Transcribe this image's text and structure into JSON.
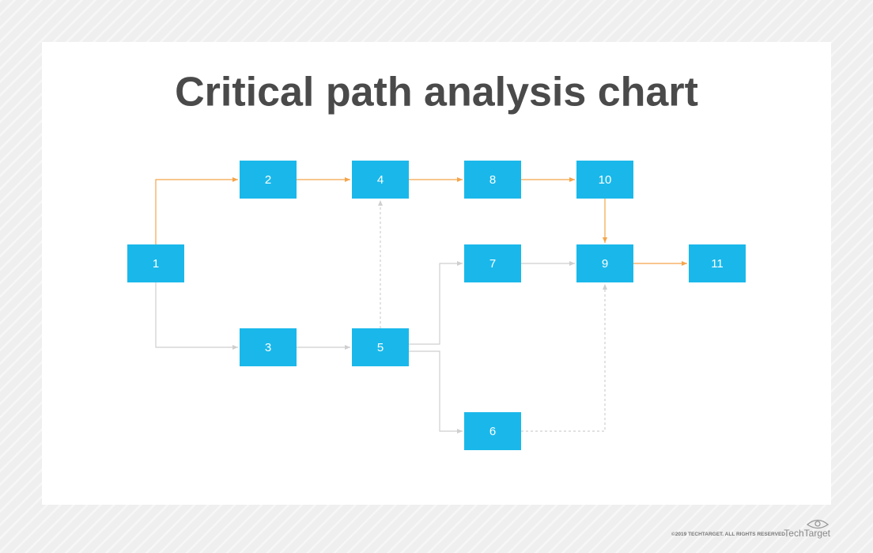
{
  "title": "Critical path analysis chart",
  "nodes": [
    {
      "label": "1"
    },
    {
      "label": "2"
    },
    {
      "label": "3"
    },
    {
      "label": "4"
    },
    {
      "label": "5"
    },
    {
      "label": "6"
    },
    {
      "label": "7"
    },
    {
      "label": "8"
    },
    {
      "label": "9"
    },
    {
      "label": "10"
    },
    {
      "label": "11"
    }
  ],
  "footer": {
    "copyright": "©2019 TECHTARGET. ALL RIGHTS RESERVED",
    "logo": "TechTarget"
  }
}
